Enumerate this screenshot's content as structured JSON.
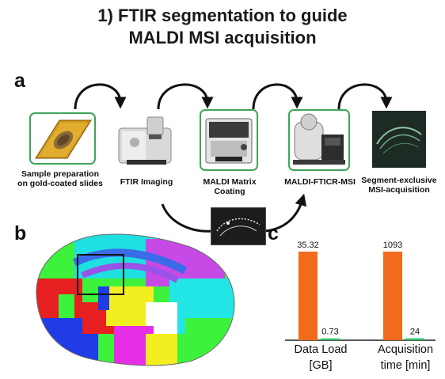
{
  "title": {
    "line1": "1) FTIR segmentation to guide",
    "line2": "MALDI MSI acquisition"
  },
  "panel_labels": {
    "a": "a",
    "b": "b",
    "c": "c"
  },
  "workflow": {
    "steps": [
      {
        "label_line1": "Sample preparation",
        "label_line2": "on gold-coated slides",
        "icon": "gold-slide-icon"
      },
      {
        "label_line1": "FTIR Imaging",
        "label_line2": "",
        "icon": "ftir-microscope-icon"
      },
      {
        "label_line1": "MALDI Matrix",
        "label_line2": "Coating",
        "icon": "matrix-sprayer-icon"
      },
      {
        "label_line1": "MALDI-FTICR-MSI",
        "label_line2": "",
        "icon": "fticr-instrument-icon"
      },
      {
        "label_line1": "Segment-exclusive",
        "label_line2": "MSI-acquisition",
        "icon": "msi-segment-image-icon"
      }
    ]
  },
  "colors": {
    "box_border": "#3fa45b",
    "bar_orange": "#f26a1b",
    "bar_green": "#2fc36a"
  },
  "chart_data": {
    "type": "bar",
    "categories": [
      "Data Load [GB]",
      "Acquisition time [min]"
    ],
    "category_lines": [
      [
        "Data Load",
        "[GB]"
      ],
      [
        "Acquisition",
        "time [min]"
      ]
    ],
    "series": [
      {
        "values": [
          35.32,
          1093
        ],
        "value_labels": [
          "35.32",
          "1093"
        ],
        "color": "#f26a1b"
      },
      {
        "values": [
          0.73,
          24
        ],
        "value_labels": [
          "0.73",
          "24"
        ],
        "color": "#2fc36a"
      }
    ],
    "scale_per_category": true,
    "grid": false
  }
}
